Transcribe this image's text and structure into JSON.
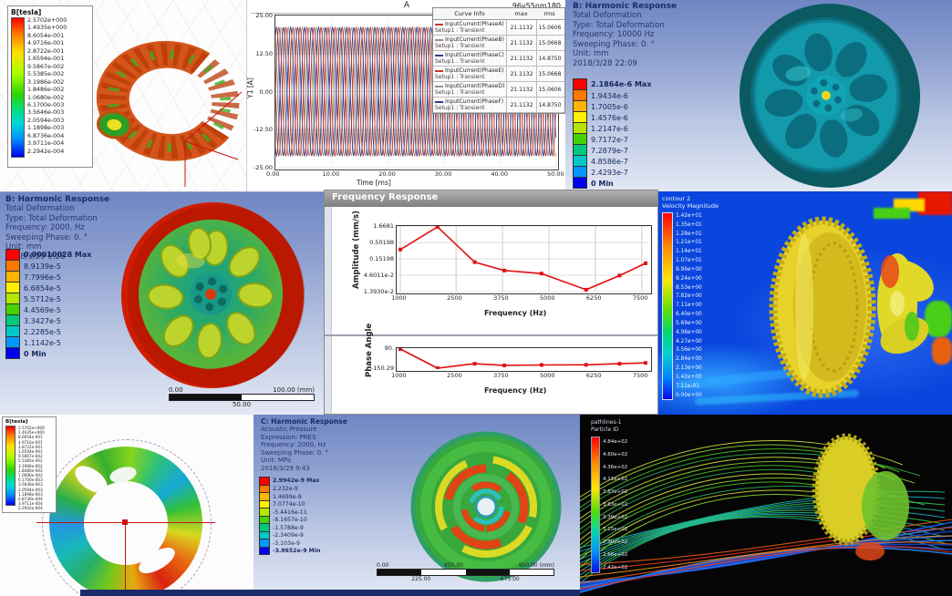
{
  "tl_field": {
    "legend_title": "B[tesla]",
    "values": [
      "2.5702e+000",
      "1.4935e+000",
      "8.6054e-001",
      "4.9716e-001",
      "2.8722e-001",
      "1.6594e-001",
      "9.5867e-002",
      "5.5385e-002",
      "3.1986e-002",
      "1.8486e-002",
      "1.0680e-002",
      "6.1700e-003",
      "3.5646e-003",
      "2.0594e-003",
      "1.1898e-003",
      "6.8736e-004",
      "3.9711e-004",
      "2.2942e-004"
    ]
  },
  "current_plot": {
    "title": "A",
    "model_label": "96v55nm180",
    "ylabel": "Y1 [A]",
    "xlabel": "Time [ms]",
    "y_tick_labels": [
      "25.00",
      "12.50",
      "0.00",
      "-12.50",
      "-25.00"
    ],
    "x_tick_labels": [
      "0.00",
      "10.00",
      "20.00",
      "30.00",
      "40.00",
      "50.00"
    ],
    "table": {
      "headers": [
        "Curve Info",
        "max",
        "rms"
      ],
      "rows": [
        {
          "name": "InputCurrent(PhaseA)",
          "setup": "Setup1 : Transient",
          "max": "21.1132",
          "rms": "15.0606",
          "color": "#c0392b"
        },
        {
          "name": "InputCurrent(PhaseB)",
          "setup": "Setup1 : Transient",
          "max": "21.1132",
          "rms": "15.0668",
          "color": "#9a9284"
        },
        {
          "name": "InputCurrent(PhaseC)",
          "setup": "Setup1 : Transient",
          "max": "21.1132",
          "rms": "14.8750",
          "color": "#2e3c8c"
        },
        {
          "name": "InputCurrent(PhaseE)",
          "setup": "Setup1 : Transient",
          "max": "21.1132",
          "rms": "15.0668",
          "color": "#c0392b"
        },
        {
          "name": "InputCurrent(PhaseD)",
          "setup": "Setup1 : Transient",
          "max": "21.1132",
          "rms": "15.0606",
          "color": "#9a9284"
        },
        {
          "name": "InputCurrent(PhaseF)",
          "setup": "Setup1 : Transient",
          "max": "21.1132",
          "rms": "14.8750",
          "color": "#2e3c8c"
        }
      ]
    }
  },
  "tr_harmonic": {
    "title": "B: Harmonic Response",
    "lines": [
      "Total Deformation",
      "Type: Total Deformation",
      "Frequency: 10000 Hz",
      "Sweeping Phase: 0. °",
      "Unit: mm",
      "2018/3/28 22:09"
    ],
    "legend": [
      "2.1864e-6 Max",
      "1.9434e-6",
      "1.7005e-6",
      "1.4576e-6",
      "1.2147e-6",
      "9.7172e-7",
      "7.2879e-7",
      "4.8586e-7",
      "2.4293e-7",
      "0 Min"
    ]
  },
  "ml_harmonic": {
    "title": "B: Harmonic Response",
    "lines": [
      "Total Deformation",
      "Type: Total Deformation",
      "Frequency: 2000, Hz",
      "Sweeping Phase: 0. °",
      "Unit: mm",
      "2018/3/29 9:28"
    ],
    "legend": [
      "0.00010028 Max",
      "8.9139e-5",
      "7.7996e-5",
      "6.6854e-5",
      "5.5712e-5",
      "4.4569e-5",
      "3.3427e-5",
      "2.2285e-5",
      "1.1142e-5",
      "0 Min"
    ],
    "scale": {
      "left": "0.00",
      "right": "100.00 (mm)",
      "center": "50.00"
    }
  },
  "freq_window": {
    "title": "Frequency Response",
    "amp_ylabel": "Amplitude (mm/s)",
    "phase_ylabel": "Phase Angle",
    "xlabel": "Frequency (Hz)"
  },
  "mr_cfd": {
    "legend_title1": "contour 2",
    "legend_title2": "Velocity Magnitude",
    "values": [
      "1.42e+01",
      "1.35e+01",
      "1.28e+01",
      "1.21e+01",
      "1.14e+01",
      "1.07e+01",
      "9.96e+00",
      "9.24e+00",
      "8.53e+00",
      "7.82e+00",
      "7.11e+00",
      "6.40e+00",
      "5.69e+00",
      "4.98e+00",
      "4.27e+00",
      "3.56e+00",
      "2.84e+00",
      "2.13e+00",
      "1.42e+00",
      "7.11e-01",
      "0.00e+00"
    ]
  },
  "bl_field": {
    "legend_title": "B[tesla]",
    "values": [
      "2.5702e+000",
      "1.4935e+000",
      "8.6054e-001",
      "4.9716e-001",
      "2.8722e-001",
      "1.6594e-001",
      "9.5867e-002",
      "5.5385e-002",
      "3.1986e-002",
      "1.8486e-002",
      "1.0680e-002",
      "6.1700e-003",
      "3.5646e-003",
      "2.0594e-003",
      "1.1898e-003",
      "6.8736e-004",
      "3.9711e-004",
      "2.2942e-004"
    ]
  },
  "bm_acoustic": {
    "title": "C: Harmonic Response",
    "lines": [
      "Acoustic Pressure",
      "Expression: PRES",
      "Frequency: 2000, Hz",
      "Sweeping Phase: 0. °",
      "Unit: MPa",
      "2018/3/29 9:43"
    ],
    "legend": [
      "2.9942e-9 Max",
      "2.232e-9",
      "1.4699e-9",
      "7.0774e-10",
      "-5.4416e-11",
      "-8.1657e-10",
      "-1.5788e-9",
      "-2.3409e-9",
      "-3.103e-9",
      "-3.8652e-9 Min"
    ],
    "scale": {
      "left": "0.00",
      "center": "450.00",
      "right": "900.00 (mm)",
      "sub_left": "225.00",
      "sub_right": "675.00"
    }
  },
  "br_particles": {
    "legend_title1": "pathlines-1",
    "legend_title2": "Particle ID",
    "values": [
      "4.84e+02",
      "4.60e+02",
      "4.36e+02",
      "4.11e+02",
      "3.87e+02",
      "3.63e+02",
      "3.39e+02",
      "3.15e+02",
      "2.90e+02",
      "2.66e+02",
      "2.42e+02"
    ]
  },
  "colors": {
    "ansys_bands": [
      "#ff0000",
      "#ff7800",
      "#ffb400",
      "#fff000",
      "#b4e600",
      "#46d200",
      "#00c87d",
      "#00c8c8",
      "#0096ff",
      "#0000f0"
    ],
    "curve_red": "#c0392b",
    "curve_gray": "#9a9284",
    "curve_navy": "#2e3c8c"
  },
  "chart_data": [
    {
      "type": "line",
      "title": "A",
      "subtitle": "96v55nm180",
      "xlabel": "Time [ms]",
      "ylabel": "Y1 [A]",
      "xlim": [
        0,
        50
      ],
      "ylim": [
        -25,
        25
      ],
      "x_ticks": [
        0,
        10,
        20,
        30,
        40,
        50
      ],
      "y_ticks": [
        25,
        12.5,
        0,
        -12.5,
        -25
      ],
      "waveform": "sine",
      "amplitude": 21.1132,
      "cycles_in_window": 20,
      "grid": true,
      "legend_position": "right-overlay",
      "series": [
        {
          "name": "InputCurrent(PhaseA) Setup1 : Transient",
          "phase_deg": 0,
          "max": 21.1132,
          "rms": 15.0606,
          "color": "#c0392b"
        },
        {
          "name": "InputCurrent(PhaseB) Setup1 : Transient",
          "phase_deg": -60,
          "max": 21.1132,
          "rms": 15.0668,
          "color": "#9a9284"
        },
        {
          "name": "InputCurrent(PhaseC) Setup1 : Transient",
          "phase_deg": -120,
          "max": 21.1132,
          "rms": 14.875,
          "color": "#2e3c8c"
        },
        {
          "name": "InputCurrent(PhaseE) Setup1 : Transient",
          "phase_deg": -180,
          "max": 21.1132,
          "rms": 15.0668,
          "color": "#c0392b"
        },
        {
          "name": "InputCurrent(PhaseD) Setup1 : Transient",
          "phase_deg": -240,
          "max": 21.1132,
          "rms": 15.0606,
          "color": "#9a9284"
        },
        {
          "name": "InputCurrent(PhaseF) Setup1 : Transient",
          "phase_deg": -300,
          "max": 21.1132,
          "rms": 14.875,
          "color": "#2e3c8c"
        }
      ]
    },
    {
      "type": "line",
      "title": "Frequency Response - Amplitude",
      "xlabel": "Frequency (Hz)",
      "ylabel": "Amplitude (mm/s)",
      "y_scale": "log",
      "x": [
        1000,
        2000,
        3000,
        3800,
        4800,
        6000,
        6900,
        7600
      ],
      "y": [
        0.3,
        1.6681,
        0.12,
        0.065,
        0.052,
        0.016,
        0.045,
        0.11
      ],
      "x_ticks": [
        1000,
        2500,
        3750,
        5000,
        6250,
        7500
      ],
      "x_tick_labels": [
        "1000",
        "2500",
        "3750",
        "5000",
        "6250",
        "7500"
      ],
      "y_ticks": [
        1.6681,
        0.50198,
        0.15198,
        0.046011,
        0.01393
      ],
      "y_tick_labels": [
        "1.6681",
        "0.50198",
        "0.15198",
        "4.6011e-2",
        "1.3930e-2"
      ],
      "xlim": [
        900,
        7700
      ],
      "ylim": [
        0.01393,
        1.6681
      ],
      "grid": true,
      "color": "#e01010"
    },
    {
      "type": "line",
      "title": "Frequency Response - Phase",
      "xlabel": "Frequency (Hz)",
      "ylabel": "Phase Angle",
      "x": [
        1000,
        2000,
        3000,
        3800,
        4800,
        6000,
        6900,
        7600
      ],
      "y": [
        90,
        -150.29,
        -95,
        -115,
        -110,
        -108,
        -95,
        -85
      ],
      "x_ticks": [
        1000,
        2500,
        3750,
        5000,
        6250,
        7500
      ],
      "x_tick_labels": [
        "1000",
        "2500",
        "3750",
        "5000",
        "6250",
        "7500"
      ],
      "y_ticks": [
        90,
        -150.29
      ],
      "y_tick_labels": [
        "90.",
        "-150.29"
      ],
      "xlim": [
        900,
        7700
      ],
      "ylim": [
        -160,
        95
      ],
      "grid": false,
      "color": "#e01010"
    }
  ]
}
